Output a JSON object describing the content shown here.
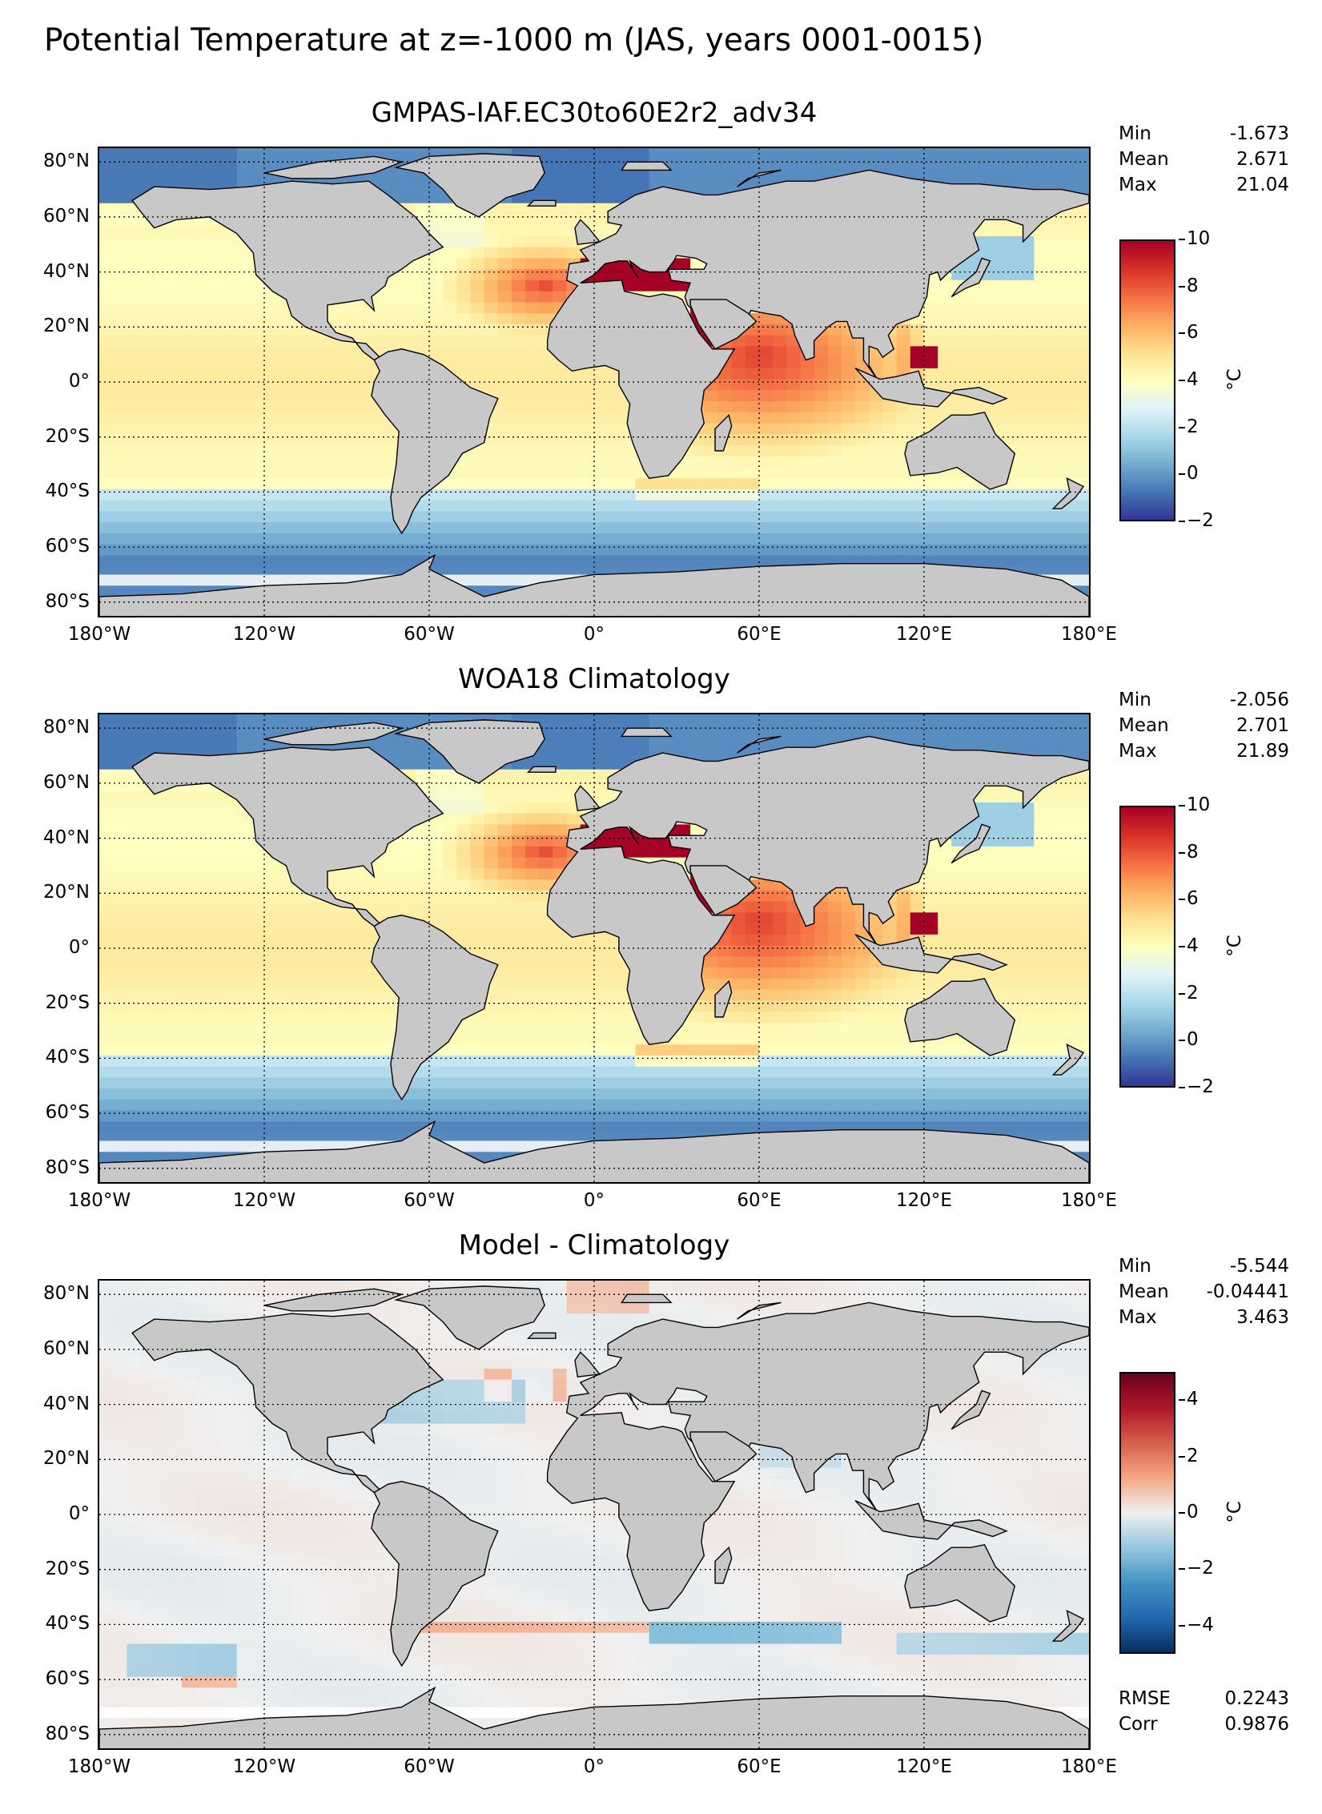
{
  "figure": {
    "title": "Potential Temperature at z=-1000 m (JAS, years 0001-0015)"
  },
  "lat_labels": [
    "80°N",
    "60°N",
    "40°N",
    "20°N",
    "0°",
    "20°S",
    "40°S",
    "60°S",
    "80°S"
  ],
  "lon_labels": [
    "180°W",
    "120°W",
    "60°W",
    "0°",
    "60°E",
    "120°E",
    "180°E"
  ],
  "panels": [
    {
      "title": "GMPAS-IAF.EC30to60E2r2_adv34",
      "stats": [
        {
          "label": "Min",
          "value": "-1.673"
        },
        {
          "label": "Mean",
          "value": "2.671"
        },
        {
          "label": "Max",
          "value": "21.04"
        }
      ],
      "colorbar": {
        "ticks": [
          "10",
          "8",
          "6",
          "4",
          "2",
          "0",
          "−2"
        ],
        "unit": "°C",
        "range": [
          -2,
          10
        ],
        "colormap": "RdYlBu_r"
      },
      "extra_stats": []
    },
    {
      "title": "WOA18 Climatology",
      "stats": [
        {
          "label": "Min",
          "value": "-2.056"
        },
        {
          "label": "Mean",
          "value": "2.701"
        },
        {
          "label": "Max",
          "value": "21.89"
        }
      ],
      "colorbar": {
        "ticks": [
          "10",
          "8",
          "6",
          "4",
          "2",
          "0",
          "−2"
        ],
        "unit": "°C",
        "range": [
          -2,
          10
        ],
        "colormap": "RdYlBu_r"
      },
      "extra_stats": []
    },
    {
      "title": "Model - Climatology",
      "stats": [
        {
          "label": "Min",
          "value": "-5.544"
        },
        {
          "label": "Mean",
          "value": "-0.04441"
        },
        {
          "label": "Max",
          "value": "3.463"
        }
      ],
      "colorbar": {
        "ticks": [
          "4",
          "2",
          "0",
          "−2",
          "−4"
        ],
        "unit": "°C",
        "range": [
          -5,
          5
        ],
        "colormap": "RdBu_r"
      },
      "extra_stats": [
        {
          "label": "RMSE",
          "value": "0.2243"
        },
        {
          "label": "Corr",
          "value": "0.9876"
        }
      ]
    }
  ],
  "colors": {
    "land": "#c8c8c8",
    "no_data": "#ffffff",
    "coastline": "#000000"
  }
}
